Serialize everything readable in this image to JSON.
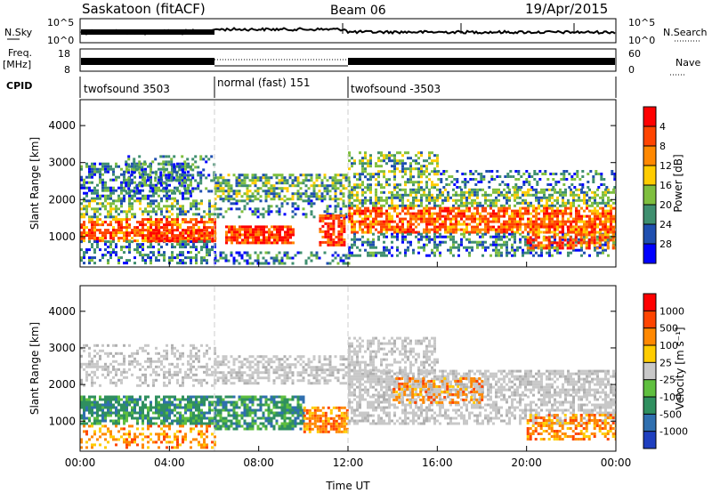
{
  "header": {
    "station": "Saskatoon (fitACF)",
    "beam": "Beam 06",
    "date": "19/Apr/2015"
  },
  "top_panels": {
    "nsky_label": "N.Sky",
    "nsearch_label": "N.Search",
    "nsky_ticks": [
      "10^5",
      "10^0"
    ],
    "nsearch_ticks": [
      "10^5",
      "10^0"
    ],
    "freq_label_line1": "Freq.",
    "freq_label_line2": "[MHz]",
    "freq_ticks": [
      "18",
      "8"
    ],
    "nave_label": "Nave",
    "nave_ticks": [
      "60",
      "0"
    ],
    "cpid_label": "CPID",
    "cpid_segments": [
      {
        "label": "twofsound 3503",
        "start_hour": 0,
        "end_hour": 6
      },
      {
        "label": "normal (fast) 151",
        "start_hour": 6,
        "end_hour": 12
      },
      {
        "label": "twofsound -3503",
        "start_hour": 12,
        "end_hour": 24
      }
    ]
  },
  "colors": {
    "power": [
      "#0000ff",
      "#1f4fb0",
      "#3f8f6f",
      "#7fbf3f",
      "#ffcc00",
      "#ff8800",
      "#ff4400",
      "#ff0000"
    ],
    "velocity": [
      "#1f3fbf",
      "#2f6faf",
      "#2f8f5f",
      "#5fbf3f",
      "#c8c8c8",
      "#ffcc00",
      "#ff8800",
      "#ff4400",
      "#ff0000"
    ]
  },
  "chart_data": [
    {
      "type": "heatmap",
      "name": "Power",
      "xlabel": "",
      "ylabel": "Slant Range [km]",
      "x_ticks": [
        "00:00",
        "04:00",
        "08:00",
        "12:00",
        "16:00",
        "20:00",
        "00:00"
      ],
      "x_range_hours": [
        0,
        24
      ],
      "y_ticks": [
        "1000",
        "2000",
        "3000",
        "4000"
      ],
      "y_range_km": [
        180,
        4700
      ],
      "colorbar_label": "Power [dB]",
      "colorbar_ticks": [
        "4",
        "8",
        "12",
        "16",
        "20",
        "24",
        "28"
      ],
      "colorbar_range": [
        0,
        32
      ],
      "mode_change_hours": [
        6,
        12
      ]
    },
    {
      "type": "heatmap",
      "name": "Velocity",
      "xlabel": "Time UT",
      "ylabel": "Slant Range [km]",
      "x_ticks": [
        "00:00",
        "04:00",
        "08:00",
        "12:00",
        "16:00",
        "20:00",
        "00:00"
      ],
      "x_range_hours": [
        0,
        24
      ],
      "y_ticks": [
        "1000",
        "2000",
        "3000",
        "4000"
      ],
      "y_range_km": [
        180,
        4700
      ],
      "colorbar_label": "Velocity [m s⁻¹]",
      "colorbar_ticks": [
        "1000",
        "500",
        "100",
        "25",
        "-25",
        "-100",
        "-500",
        "-1000"
      ],
      "mode_change_hours": [
        6,
        12
      ]
    }
  ]
}
